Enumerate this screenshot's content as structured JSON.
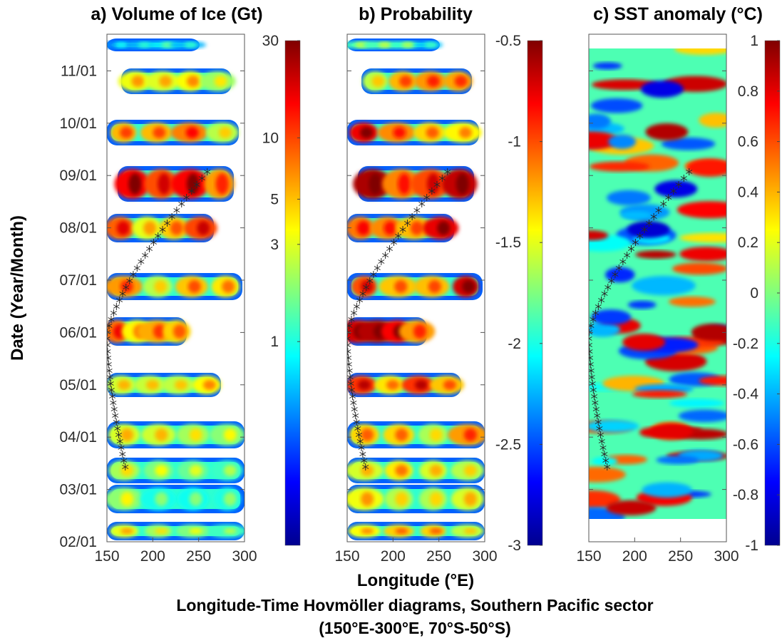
{
  "figure": {
    "xlabel": "Longitude (°E)",
    "ylabel": "Date (Year/Month)",
    "caption_line1": "Longitude-Time Hovmöller diagrams, Southern Pacific sector",
    "caption_line2": "(150°E-300°E, 70°S-50°S)"
  },
  "colormap": "jet",
  "chart_data": [
    {
      "type": "heatmap",
      "title": "a) Volume of Ice (Gt)",
      "xlim": [
        150,
        300
      ],
      "x_ticks": [
        "150",
        "200",
        "250",
        "300"
      ],
      "y_ticks": [
        "11/01",
        "10/01",
        "09/01",
        "08/01",
        "07/01",
        "06/01",
        "05/01",
        "04/01",
        "03/01",
        "02/01"
      ],
      "colorbar": {
        "scale": "log",
        "range": [
          0.1,
          30
        ],
        "ticks": [
          "30",
          "10",
          "5",
          "3",
          "1"
        ]
      },
      "description_masked": "white areas = no data",
      "overlay_track": "asterisk markers"
    },
    {
      "type": "heatmap",
      "title": "b) Probability",
      "xlim": [
        150,
        300
      ],
      "x_ticks": [
        "150",
        "200",
        "250",
        "300"
      ],
      "colorbar": {
        "scale": "linear",
        "range": [
          -3,
          -0.5
        ],
        "ticks": [
          "-0.5",
          "-1",
          "-1.5",
          "-2",
          "-2.5",
          "-3"
        ]
      },
      "overlay_track": "asterisk markers"
    },
    {
      "type": "heatmap",
      "title": "c) SST anomaly (°C)",
      "xlim": [
        150,
        300
      ],
      "x_ticks": [
        "150",
        "200",
        "250",
        "300"
      ],
      "colorbar": {
        "scale": "linear",
        "range": [
          -1,
          1
        ],
        "ticks": [
          "1",
          "0.8",
          "0.6",
          "0.4",
          "0.2",
          "0",
          "-0.2",
          "-0.4",
          "-0.6",
          "-0.8",
          "-1"
        ]
      },
      "overlay_track": "asterisk markers"
    }
  ]
}
